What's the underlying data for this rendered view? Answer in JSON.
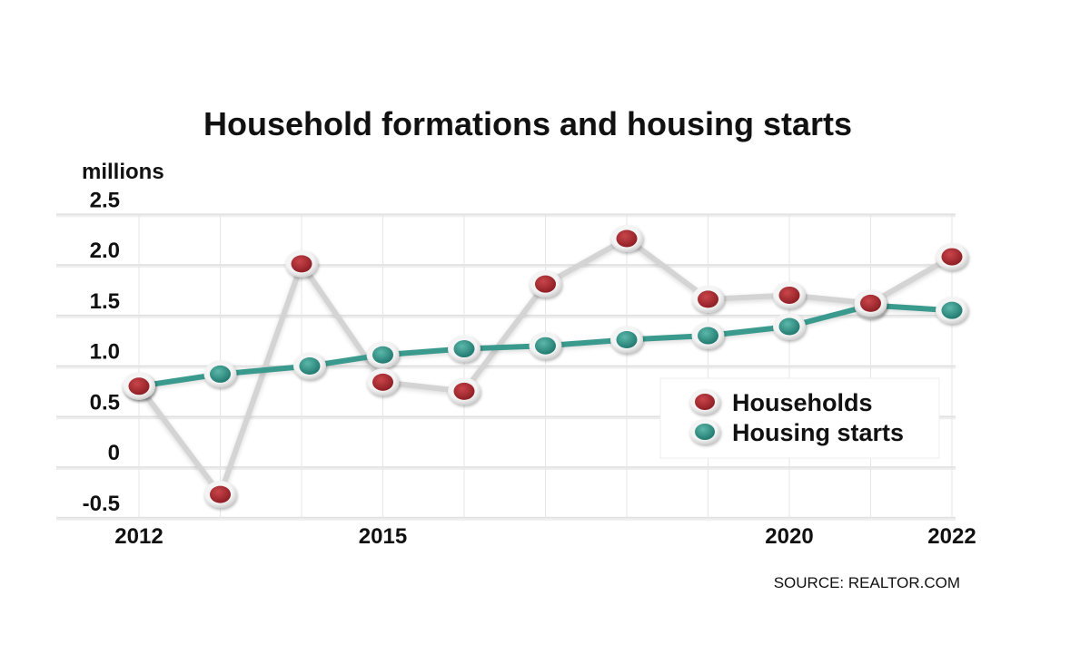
{
  "chart_data": {
    "type": "line",
    "title": "Household formations and housing starts",
    "unit_label": "millions",
    "source": "SOURCE: REALTOR.COM",
    "x": [
      2012,
      2013,
      2014,
      2015,
      2016,
      2017,
      2018,
      2019,
      2020,
      2021,
      2022
    ],
    "xtick_labels": [
      {
        "value": 2012,
        "label": "2012"
      },
      {
        "value": 2015,
        "label": "2015"
      },
      {
        "value": 2020,
        "label": "2020"
      },
      {
        "value": 2022,
        "label": "2022"
      }
    ],
    "ylim": [
      -0.5,
      2.5
    ],
    "yticks": [
      {
        "value": 2.5,
        "label": "2.5"
      },
      {
        "value": 2.0,
        "label": "2.0"
      },
      {
        "value": 1.5,
        "label": "1.5"
      },
      {
        "value": 1.0,
        "label": "1.0"
      },
      {
        "value": 0.5,
        "label": "0.5"
      },
      {
        "value": 0,
        "label": "0"
      },
      {
        "value": -0.5,
        "label": "-0.5"
      }
    ],
    "grid": true,
    "legend_position": "lower-right",
    "series": [
      {
        "name": "Households",
        "key": "households",
        "line_color": "#d4d4d4",
        "marker_color": "#a52a30",
        "points": [
          {
            "x": 2012.0,
            "y": 0.8
          },
          {
            "x": 2013.0,
            "y": -0.27
          },
          {
            "x": 2014.0,
            "y": 2.01
          },
          {
            "x": 2015.0,
            "y": 0.84
          },
          {
            "x": 2016.0,
            "y": 0.75
          },
          {
            "x": 2017.0,
            "y": 1.81
          },
          {
            "x": 2018.0,
            "y": 2.26
          },
          {
            "x": 2019.0,
            "y": 1.66
          },
          {
            "x": 2020.0,
            "y": 1.7
          },
          {
            "x": 2021.0,
            "y": 1.62
          },
          {
            "x": 2022.0,
            "y": 2.08
          }
        ]
      },
      {
        "name": "Housing starts",
        "key": "housing_starts",
        "line_color": "#3a9a8e",
        "marker_color": "#2f8d82",
        "points": [
          {
            "x": 2012.0,
            "y": 0.8
          },
          {
            "x": 2013.0,
            "y": 0.92
          },
          {
            "x": 2014.1,
            "y": 1.0
          },
          {
            "x": 2015.0,
            "y": 1.11
          },
          {
            "x": 2016.0,
            "y": 1.17
          },
          {
            "x": 2017.0,
            "y": 1.2
          },
          {
            "x": 2018.0,
            "y": 1.26
          },
          {
            "x": 2019.0,
            "y": 1.3
          },
          {
            "x": 2020.0,
            "y": 1.39
          },
          {
            "x": 2021.0,
            "y": 1.6
          },
          {
            "x": 2022.0,
            "y": 1.55
          }
        ]
      }
    ]
  }
}
